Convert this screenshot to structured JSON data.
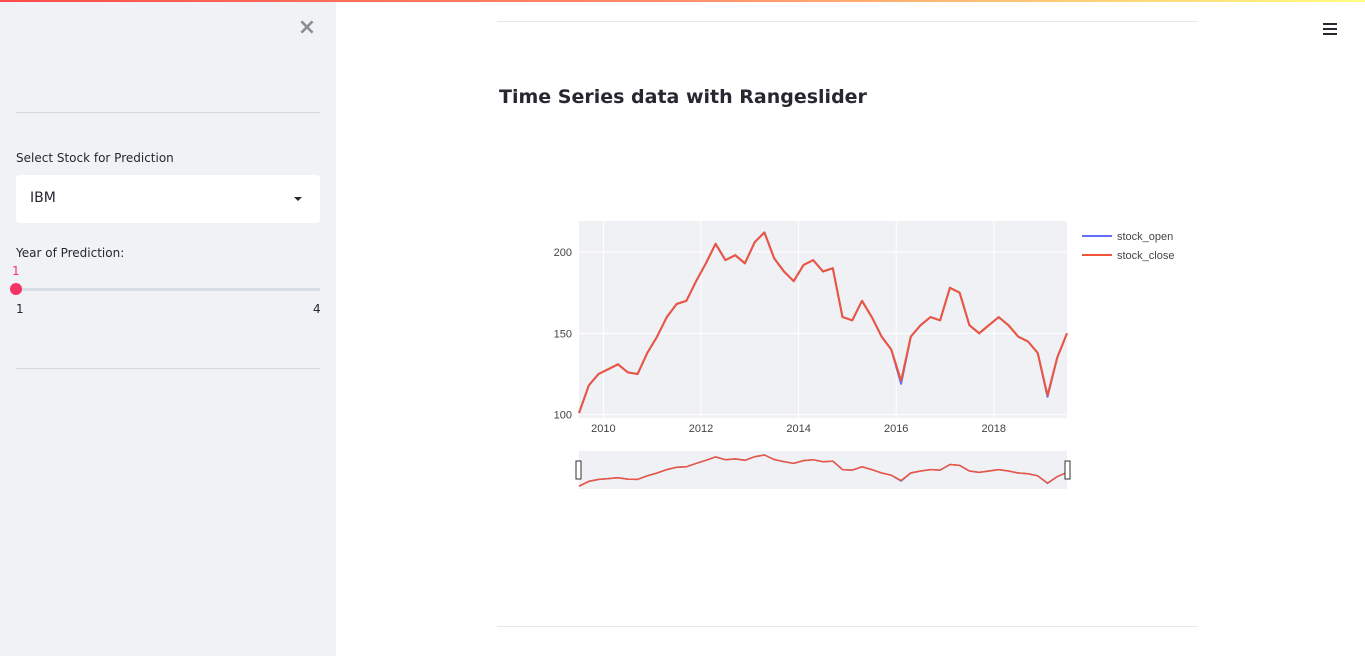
{
  "sidebar": {
    "close_icon": "×",
    "select_label": "Select Stock for Prediction",
    "select_value": "IBM",
    "slider_label": "Year of Prediction:",
    "slider_value": "1",
    "slider_min": "1",
    "slider_max": "4",
    "slider_fraction": 0
  },
  "main": {
    "title": "Time Series data with Rangeslider"
  },
  "header": {
    "menu_icon": "hamburger-icon"
  },
  "colors": {
    "accent": "#f63366",
    "sidebar_bg": "#f0f2f6",
    "stock_open": "#636efa",
    "stock_close": "#ef553b",
    "plot_bg": "#f0f1f5"
  },
  "chart_data": {
    "type": "line",
    "title": "",
    "xlabel": "",
    "ylabel": "",
    "xlim": [
      2009.5,
      2019.5
    ],
    "ylim": [
      98,
      219
    ],
    "x_ticks": [
      "2010",
      "2012",
      "2014",
      "2016",
      "2018"
    ],
    "y_ticks": [
      "100",
      "150",
      "200"
    ],
    "grid": true,
    "legend": "right",
    "rangeslider": true,
    "x": [
      2009.5,
      2009.7,
      2009.9,
      2010.1,
      2010.3,
      2010.5,
      2010.7,
      2010.9,
      2011.1,
      2011.3,
      2011.5,
      2011.7,
      2011.9,
      2012.1,
      2012.3,
      2012.5,
      2012.7,
      2012.9,
      2013.1,
      2013.3,
      2013.5,
      2013.7,
      2013.9,
      2014.1,
      2014.3,
      2014.5,
      2014.7,
      2014.9,
      2015.1,
      2015.3,
      2015.5,
      2015.7,
      2015.9,
      2016.1,
      2016.3,
      2016.5,
      2016.7,
      2016.9,
      2017.1,
      2017.3,
      2017.5,
      2017.7,
      2017.9,
      2018.1,
      2018.3,
      2018.5,
      2018.7,
      2018.9,
      2019.1,
      2019.3,
      2019.5
    ],
    "series": [
      {
        "name": "stock_open",
        "values": [
          101,
          118,
          125,
          128,
          131,
          126,
          125,
          138,
          148,
          160,
          168,
          170,
          182,
          193,
          205,
          195,
          198,
          193,
          206,
          212,
          196,
          188,
          182,
          192,
          195,
          188,
          190,
          160,
          158,
          170,
          160,
          148,
          140,
          119,
          148,
          155,
          160,
          158,
          178,
          175,
          155,
          150,
          155,
          160,
          155,
          148,
          145,
          138,
          111,
          135,
          150
        ]
      },
      {
        "name": "stock_close",
        "values": [
          101,
          118,
          125,
          128,
          131,
          126,
          125,
          138,
          148,
          160,
          168,
          170,
          182,
          193,
          205,
          195,
          198,
          193,
          206,
          212,
          196,
          188,
          182,
          192,
          195,
          188,
          190,
          160,
          158,
          170,
          160,
          148,
          140,
          121,
          148,
          155,
          160,
          158,
          178,
          175,
          155,
          150,
          155,
          160,
          155,
          148,
          145,
          138,
          112,
          135,
          150
        ]
      }
    ]
  }
}
